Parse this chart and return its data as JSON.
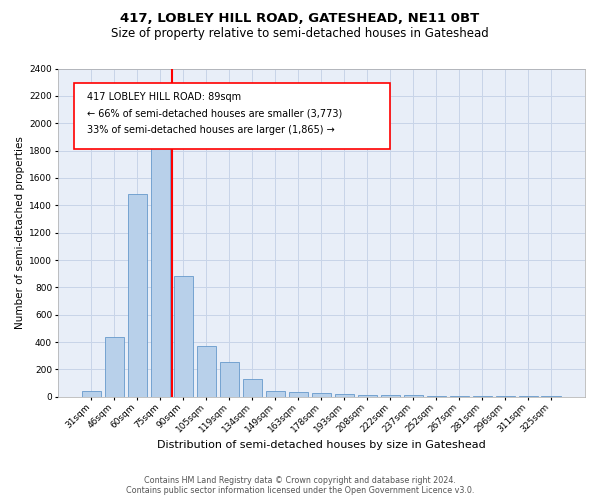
{
  "title": "417, LOBLEY HILL ROAD, GATESHEAD, NE11 0BT",
  "subtitle": "Size of property relative to semi-detached houses in Gateshead",
  "xlabel": "Distribution of semi-detached houses by size in Gateshead",
  "ylabel": "Number of semi-detached properties",
  "categories": [
    "31sqm",
    "46sqm",
    "60sqm",
    "75sqm",
    "90sqm",
    "105sqm",
    "119sqm",
    "134sqm",
    "149sqm",
    "163sqm",
    "178sqm",
    "193sqm",
    "208sqm",
    "222sqm",
    "237sqm",
    "252sqm",
    "267sqm",
    "281sqm",
    "296sqm",
    "311sqm",
    "325sqm"
  ],
  "values": [
    40,
    440,
    1480,
    2180,
    880,
    375,
    255,
    130,
    40,
    35,
    25,
    20,
    15,
    15,
    15,
    5,
    5,
    5,
    5,
    5,
    5
  ],
  "bar_color": "#b8d0ea",
  "bar_edge_color": "#6699cc",
  "highlight_bar_index": 4,
  "red_line_label": "417 LOBLEY HILL ROAD: 89sqm",
  "annotation_line1": "← 66% of semi-detached houses are smaller (3,773)",
  "annotation_line2": "33% of semi-detached houses are larger (1,865) →",
  "ylim": [
    0,
    2400
  ],
  "yticks": [
    0,
    200,
    400,
    600,
    800,
    1000,
    1200,
    1400,
    1600,
    1800,
    2000,
    2200,
    2400
  ],
  "grid_color": "#c8d4e8",
  "background_color": "#e8eef8",
  "footer_line1": "Contains HM Land Registry data © Crown copyright and database right 2024.",
  "footer_line2": "Contains public sector information licensed under the Open Government Licence v3.0.",
  "title_fontsize": 9.5,
  "subtitle_fontsize": 8.5,
  "xlabel_fontsize": 8,
  "ylabel_fontsize": 7.5,
  "tick_fontsize": 6.5,
  "annotation_fontsize": 7,
  "footer_fontsize": 5.8
}
